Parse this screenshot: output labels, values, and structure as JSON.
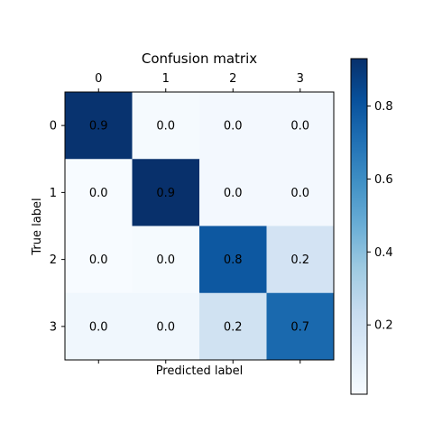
{
  "chart_data": {
    "type": "heatmap",
    "title": "Confusion matrix",
    "xlabel": "Predicted label",
    "ylabel": "True label",
    "x_categories": [
      "0",
      "1",
      "2",
      "3"
    ],
    "y_categories": [
      "0",
      "1",
      "2",
      "3"
    ],
    "values": [
      [
        0.92,
        0.02,
        0.03,
        0.03
      ],
      [
        0.01,
        0.93,
        0.03,
        0.03
      ],
      [
        0.01,
        0.02,
        0.79,
        0.18
      ],
      [
        0.04,
        0.04,
        0.19,
        0.73
      ]
    ],
    "labels": [
      [
        "0.9",
        "0.0",
        "0.0",
        "0.0"
      ],
      [
        "0.0",
        "0.9",
        "0.0",
        "0.0"
      ],
      [
        "0.0",
        "0.0",
        "0.8",
        "0.2"
      ],
      [
        "0.0",
        "0.0",
        "0.2",
        "0.7"
      ]
    ],
    "colormap": "Blues",
    "colorbar": {
      "range": [
        0.01,
        0.93
      ],
      "ticks": [
        0.2,
        0.4,
        0.6,
        0.8
      ],
      "tick_labels": [
        "0.2",
        "0.4",
        "0.6",
        "0.8"
      ]
    },
    "x_tick_position": "top"
  }
}
